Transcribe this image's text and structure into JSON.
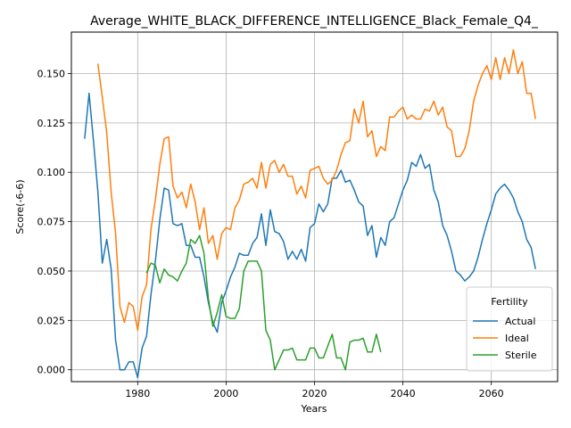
{
  "chart_data": {
    "type": "line",
    "title": "Average_WHITE_BLACK_DIFFERENCE_INTELLIGENCE_Black_Female_Q4_",
    "xlabel": "Years",
    "ylabel": "Score(-6-6)",
    "xlim": [
      1965,
      2075
    ],
    "ylim": [
      -0.006,
      0.171
    ],
    "xticks": [
      1980,
      2000,
      2020,
      2040,
      2060
    ],
    "yticks": [
      0.0,
      0.025,
      0.05,
      0.075,
      0.1,
      0.125,
      0.15
    ],
    "ytick_labels": [
      "0.000",
      "0.025",
      "0.050",
      "0.075",
      "0.100",
      "0.125",
      "0.150"
    ],
    "grid": true,
    "legend": {
      "title": "Fertility",
      "position": "lower-right"
    },
    "series": [
      {
        "name": "Actual",
        "color": "#1f77b4",
        "x": [
          1968,
          1969,
          1970,
          1971,
          1972,
          1973,
          1974,
          1975,
          1976,
          1977,
          1978,
          1979,
          1980,
          1981,
          1982,
          1983,
          1984,
          1985,
          1986,
          1987,
          1988,
          1989,
          1990,
          1991,
          1992,
          1993,
          1994,
          1995,
          1996,
          1997,
          1998,
          1999,
          2000,
          2001,
          2002,
          2003,
          2004,
          2005,
          2006,
          2007,
          2008,
          2009,
          2010,
          2011,
          2012,
          2013,
          2014,
          2015,
          2016,
          2017,
          2018,
          2019,
          2020,
          2021,
          2022,
          2023,
          2024,
          2025,
          2026,
          2027,
          2028,
          2029,
          2030,
          2031,
          2032,
          2033,
          2034,
          2035,
          2036,
          2037,
          2038,
          2039,
          2040,
          2041,
          2042,
          2043,
          2044,
          2045,
          2046,
          2047,
          2048,
          2049,
          2050,
          2051,
          2052,
          2053,
          2054,
          2055,
          2056,
          2057,
          2058,
          2059,
          2060,
          2061,
          2062,
          2063,
          2064,
          2065,
          2066,
          2067,
          2068,
          2069,
          2070
        ],
        "y": [
          0.117,
          0.14,
          0.116,
          0.09,
          0.054,
          0.066,
          0.051,
          0.015,
          0.0,
          0.0,
          0.004,
          0.004,
          -0.004,
          0.011,
          0.017,
          0.038,
          0.055,
          0.076,
          0.092,
          0.091,
          0.074,
          0.073,
          0.074,
          0.063,
          0.063,
          0.057,
          0.057,
          0.047,
          0.034,
          0.024,
          0.019,
          0.034,
          0.04,
          0.047,
          0.052,
          0.059,
          0.058,
          0.058,
          0.064,
          0.067,
          0.079,
          0.063,
          0.081,
          0.07,
          0.069,
          0.065,
          0.056,
          0.06,
          0.056,
          0.061,
          0.055,
          0.072,
          0.074,
          0.084,
          0.08,
          0.084,
          0.097,
          0.097,
          0.101,
          0.095,
          0.096,
          0.091,
          0.085,
          0.083,
          0.068,
          0.073,
          0.057,
          0.067,
          0.063,
          0.075,
          0.077,
          0.084,
          0.091,
          0.096,
          0.105,
          0.103,
          0.109,
          0.102,
          0.104,
          0.091,
          0.085,
          0.073,
          0.068,
          0.06,
          0.05,
          0.048,
          0.045,
          0.047,
          0.05,
          0.057,
          0.066,
          0.074,
          0.081,
          0.089,
          0.092,
          0.094,
          0.091,
          0.087,
          0.08,
          0.075,
          0.066,
          0.062,
          0.051
        ]
      },
      {
        "name": "Ideal",
        "color": "#ff7f0e",
        "x": [
          1971,
          1972,
          1973,
          1974,
          1975,
          1976,
          1977,
          1978,
          1979,
          1980,
          1981,
          1982,
          1983,
          1984,
          1985,
          1986,
          1987,
          1988,
          1989,
          1990,
          1991,
          1992,
          1993,
          1994,
          1995,
          1996,
          1997,
          1998,
          1999,
          2000,
          2001,
          2002,
          2003,
          2004,
          2005,
          2006,
          2007,
          2008,
          2009,
          2010,
          2011,
          2012,
          2013,
          2014,
          2015,
          2016,
          2017,
          2018,
          2019,
          2020,
          2021,
          2022,
          2023,
          2024,
          2025,
          2026,
          2027,
          2028,
          2029,
          2030,
          2031,
          2032,
          2033,
          2034,
          2035,
          2036,
          2037,
          2038,
          2039,
          2040,
          2041,
          2042,
          2043,
          2044,
          2045,
          2046,
          2047,
          2048,
          2049,
          2050,
          2051,
          2052,
          2053,
          2054,
          2055,
          2056,
          2057,
          2058,
          2059,
          2060,
          2061,
          2062,
          2063,
          2064,
          2065,
          2066,
          2067,
          2068,
          2069,
          2070
        ],
        "y": [
          0.155,
          0.138,
          0.12,
          0.09,
          0.069,
          0.032,
          0.024,
          0.034,
          0.032,
          0.02,
          0.037,
          0.043,
          0.071,
          0.086,
          0.104,
          0.117,
          0.118,
          0.093,
          0.087,
          0.09,
          0.082,
          0.094,
          0.085,
          0.071,
          0.082,
          0.064,
          0.068,
          0.056,
          0.069,
          0.072,
          0.071,
          0.082,
          0.086,
          0.094,
          0.095,
          0.097,
          0.092,
          0.105,
          0.092,
          0.104,
          0.106,
          0.1,
          0.104,
          0.098,
          0.098,
          0.089,
          0.093,
          0.087,
          0.101,
          0.102,
          0.103,
          0.097,
          0.094,
          0.096,
          0.101,
          0.109,
          0.115,
          0.116,
          0.132,
          0.125,
          0.136,
          0.118,
          0.121,
          0.108,
          0.113,
          0.111,
          0.128,
          0.128,
          0.131,
          0.133,
          0.127,
          0.129,
          0.127,
          0.127,
          0.132,
          0.131,
          0.136,
          0.129,
          0.133,
          0.123,
          0.121,
          0.108,
          0.108,
          0.112,
          0.121,
          0.136,
          0.144,
          0.15,
          0.154,
          0.147,
          0.158,
          0.147,
          0.158,
          0.15,
          0.162,
          0.15,
          0.156,
          0.14,
          0.14,
          0.127
        ]
      },
      {
        "name": "Sterile",
        "color": "#2ca02c",
        "x": [
          1982,
          1983,
          1984,
          1985,
          1986,
          1987,
          1988,
          1989,
          1990,
          1991,
          1992,
          1993,
          1994,
          1995,
          1996,
          1997,
          1998,
          1999,
          2000,
          2001,
          2002,
          2003,
          2004,
          2005,
          2006,
          2007,
          2008,
          2009,
          2010,
          2011,
          2012,
          2013,
          2014,
          2015,
          2016,
          2017,
          2018,
          2019,
          2020,
          2021,
          2022,
          2023,
          2024,
          2025,
          2026,
          2027,
          2028,
          2029,
          2030,
          2031,
          2032,
          2033,
          2034,
          2035
        ],
        "y": [
          0.049,
          0.054,
          0.053,
          0.044,
          0.051,
          0.048,
          0.047,
          0.045,
          0.05,
          0.054,
          0.066,
          0.064,
          0.068,
          0.059,
          0.036,
          0.022,
          0.029,
          0.038,
          0.027,
          0.026,
          0.026,
          0.031,
          0.05,
          0.055,
          0.055,
          0.055,
          0.05,
          0.02,
          0.015,
          0.0,
          0.005,
          0.01,
          0.01,
          0.011,
          0.005,
          0.005,
          0.005,
          0.011,
          0.011,
          0.006,
          0.006,
          0.012,
          0.018,
          0.006,
          0.006,
          0.0,
          0.014,
          0.015,
          0.015,
          0.016,
          0.009,
          0.009,
          0.018,
          0.009
        ]
      }
    ]
  }
}
